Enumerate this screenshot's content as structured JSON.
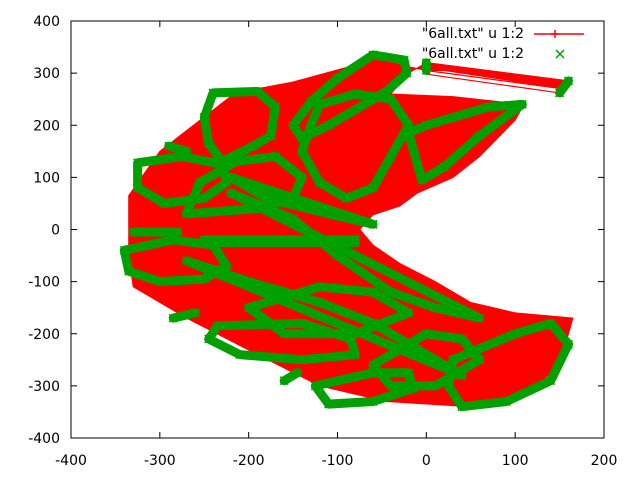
{
  "chart_data": {
    "type": "scatter",
    "title": "",
    "xlabel": "",
    "ylabel": "",
    "xlim": [
      -400,
      200
    ],
    "ylim": [
      -400,
      400
    ],
    "grid": false,
    "legend_placement": "top-right",
    "x_ticks": [
      {
        "value": -400,
        "label": "-400"
      },
      {
        "value": -300,
        "label": "-300"
      },
      {
        "value": -200,
        "label": "-200"
      },
      {
        "value": -100,
        "label": "-100"
      },
      {
        "value": 0,
        "label": "0"
      },
      {
        "value": 100,
        "label": "100"
      },
      {
        "value": 200,
        "label": "200"
      }
    ],
    "y_ticks": [
      {
        "value": -400,
        "label": "-400"
      },
      {
        "value": -300,
        "label": "-300"
      },
      {
        "value": -200,
        "label": "-200"
      },
      {
        "value": -100,
        "label": "-100"
      },
      {
        "value": 0,
        "label": "0"
      },
      {
        "value": 100,
        "label": "100"
      },
      {
        "value": 200,
        "label": "200"
      },
      {
        "value": 300,
        "label": "300"
      },
      {
        "value": 400,
        "label": "400"
      }
    ],
    "series": [
      {
        "name": "\"6all.txt\" u 1:2",
        "style": "linespoints",
        "color": "#ff0000",
        "filled_region": [
          [
            -42,
            333
          ],
          [
            -150,
            283
          ],
          [
            -215,
            262
          ],
          [
            -300,
            150
          ],
          [
            -335,
            65
          ],
          [
            -335,
            -50
          ],
          [
            -330,
            -110
          ],
          [
            -270,
            -170
          ],
          [
            -190,
            -240
          ],
          [
            -120,
            -300
          ],
          [
            -45,
            -330
          ],
          [
            50,
            -340
          ],
          [
            110,
            -320
          ],
          [
            150,
            -260
          ],
          [
            165,
            -170
          ],
          [
            100,
            -160
          ],
          [
            50,
            -140
          ],
          [
            10,
            -100
          ],
          [
            -30,
            -65
          ],
          [
            -60,
            -30
          ],
          [
            -75,
            0
          ],
          [
            -60,
            28
          ],
          [
            -30,
            45
          ],
          [
            -10,
            70
          ],
          [
            30,
            100
          ],
          [
            60,
            140
          ],
          [
            100,
            210
          ],
          [
            110,
            240
          ],
          [
            30,
            255
          ],
          [
            -40,
            260
          ],
          [
            -20,
            300
          ],
          [
            0,
            320
          ],
          [
            160,
            285
          ],
          [
            155,
            270
          ],
          [
            20,
            305
          ],
          [
            0,
            305
          ],
          [
            -30,
            316
          ]
        ],
        "fan_lines": [
          [
            [
              0,
              320
            ],
            [
              160,
              285
            ]
          ],
          [
            [
              0,
              312
            ],
            [
              157,
              278
            ]
          ],
          [
            [
              0,
              305
            ],
            [
              153,
              270
            ]
          ],
          [
            [
              0,
              298
            ],
            [
              150,
              262
            ]
          ],
          [
            [
              -30,
              258
            ],
            [
              108,
              240
            ]
          ]
        ]
      },
      {
        "name": "\"6all.txt\" u 1:2",
        "style": "points",
        "marker": "x",
        "color": "#00a000",
        "loops": [
          [
            [
              -60,
              335
            ],
            [
              -25,
              325
            ],
            [
              -22,
              300
            ],
            [
              -45,
              265
            ],
            [
              -80,
              230
            ],
            [
              -110,
              200
            ],
            [
              -140,
              175
            ],
            [
              -150,
              200
            ],
            [
              -130,
              245
            ],
            [
              -100,
              290
            ]
          ],
          [
            [
              -240,
              262
            ],
            [
              -190,
              265
            ],
            [
              -170,
              235
            ],
            [
              -175,
              180
            ],
            [
              -195,
              160
            ],
            [
              -230,
              130
            ],
            [
              -245,
              165
            ],
            [
              -250,
              215
            ]
          ],
          [
            [
              -325,
              128
            ],
            [
              -275,
              140
            ],
            [
              -230,
              125
            ],
            [
              -225,
              90
            ],
            [
              -250,
              60
            ],
            [
              -295,
              50
            ],
            [
              -325,
              80
            ]
          ],
          [
            [
              -340,
              -40
            ],
            [
              -285,
              -20
            ],
            [
              -240,
              -30
            ],
            [
              -225,
              -70
            ],
            [
              -250,
              -95
            ],
            [
              -300,
              -100
            ],
            [
              -335,
              -80
            ]
          ],
          [
            [
              -235,
              -185
            ],
            [
              -140,
              -180
            ],
            [
              -85,
              -210
            ],
            [
              -80,
              -240
            ],
            [
              -140,
              -250
            ],
            [
              -210,
              -240
            ],
            [
              -245,
              -210
            ]
          ],
          [
            [
              -125,
              -300
            ],
            [
              -60,
              -275
            ],
            [
              -20,
              -275
            ],
            [
              -15,
              -305
            ],
            [
              -60,
              -330
            ],
            [
              -110,
              -335
            ]
          ],
          [
            [
              30,
              -250
            ],
            [
              100,
              -200
            ],
            [
              140,
              -180
            ],
            [
              160,
              -220
            ],
            [
              140,
              -290
            ],
            [
              90,
              -330
            ],
            [
              40,
              -340
            ],
            [
              25,
              -300
            ]
          ],
          [
            [
              -60,
              -260
            ],
            [
              0,
              -200
            ],
            [
              40,
              -210
            ],
            [
              60,
              -250
            ],
            [
              10,
              -300
            ],
            [
              -40,
              -300
            ]
          ],
          [
            [
              -270,
              30
            ],
            [
              -190,
              40
            ],
            [
              -150,
              60
            ],
            [
              -140,
              100
            ],
            [
              -170,
              140
            ],
            [
              -215,
              130
            ],
            [
              -255,
              90
            ]
          ],
          [
            [
              -120,
              240
            ],
            [
              -80,
              260
            ],
            [
              -40,
              250
            ],
            [
              -20,
              200
            ],
            [
              -40,
              140
            ],
            [
              -60,
              80
            ],
            [
              -90,
              60
            ],
            [
              -120,
              90
            ],
            [
              -140,
              150
            ],
            [
              -130,
              200
            ]
          ],
          [
            [
              -20,
              185
            ],
            [
              0,
              200
            ],
            [
              70,
              235
            ],
            [
              108,
              240
            ],
            [
              60,
              180
            ],
            [
              20,
              120
            ],
            [
              -5,
              95
            ]
          ],
          [
            [
              -250,
              -25
            ],
            [
              -80,
              -25
            ]
          ],
          [
            [
              -250,
              -20
            ],
            [
              -80,
              -20
            ]
          ],
          [
            [
              -200,
              -150
            ],
            [
              -120,
              -110
            ],
            [
              -60,
              -120
            ],
            [
              -20,
              -160
            ],
            [
              -80,
              -200
            ],
            [
              -160,
              -200
            ]
          ],
          [
            [
              -330,
              -5
            ],
            [
              -280,
              -5
            ]
          ],
          [
            [
              -290,
              160
            ],
            [
              -270,
              150
            ]
          ],
          [
            [
              -285,
              -170
            ],
            [
              -260,
              -160
            ]
          ],
          [
            [
              -160,
              -290
            ],
            [
              -145,
              -275
            ]
          ],
          [
            [
              -220,
              70
            ],
            [
              -150,
              20
            ],
            [
              -100,
              -50
            ],
            [
              -40,
              -120
            ],
            [
              10,
              -150
            ],
            [
              60,
              -170
            ]
          ],
          [
            [
              -270,
              -60
            ],
            [
              -200,
              -100
            ],
            [
              -120,
              -140
            ],
            [
              -60,
              -180
            ],
            [
              -10,
              -230
            ],
            [
              40,
              -280
            ]
          ],
          [
            [
              -220,
              100
            ],
            [
              -180,
              60
            ],
            [
              -110,
              30
            ],
            [
              -60,
              10
            ]
          ],
          [
            [
              0,
              320
            ],
            [
              0,
              305
            ]
          ],
          [
            [
              150,
              262
            ],
            [
              160,
              285
            ]
          ]
        ]
      }
    ]
  }
}
